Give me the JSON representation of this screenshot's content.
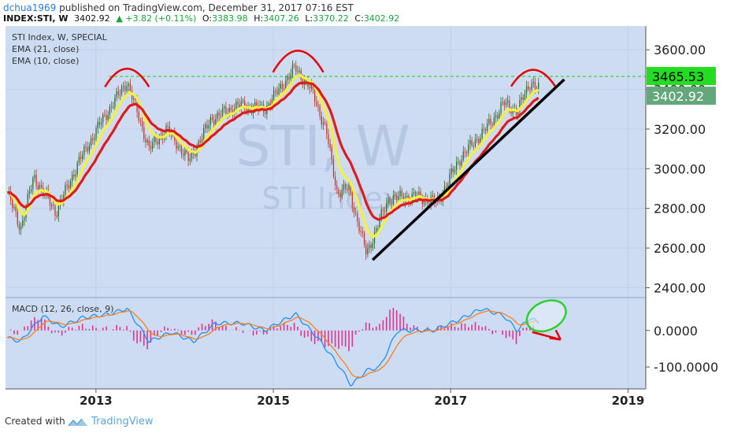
{
  "header": {
    "user": "dchua1969",
    "published": " published on TradingView.com, December 31, 2017 07:16 EST",
    "symbol": "INDEX:STI, W",
    "price": "3402.92",
    "change": "▲ +3.82 (+0.11%)",
    "o_label": "O:",
    "o_value": "3383.98",
    "h_label": "H:",
    "h_value": "3407.26",
    "l_label": "L:",
    "l_value": "3370.22",
    "c_label": "C:",
    "c_value": "3402.92"
  },
  "legend": {
    "line1": "STI Index, W, SPECIAL",
    "line2": "EMA (21, close)",
    "line3": "EMA (10, close)",
    "macd": "MACD (12, 26, close, 9)"
  },
  "watermark": {
    "big": "STI, W",
    "small": "STI Index"
  },
  "footer": {
    "created": "Created with",
    "brand": "TradingView"
  },
  "colors": {
    "background": "#cddcf2",
    "up": "#2e6e2e",
    "down": "#c0392b",
    "ema21": "#e11b1b",
    "ema10": "#f5f13a",
    "macd_line": "#1e90ff",
    "signal_line": "#ff7f1a",
    "histogram": "#e0348f",
    "resistance": "#2ad12a",
    "trendline": "#000000",
    "annotation": "#e60000"
  },
  "chart_data": {
    "type": "candlestick",
    "x_ticks": [
      "2013",
      "2015",
      "2017",
      "2019"
    ],
    "y_ticks": [
      "3600.00",
      "3400.00",
      "3200.00",
      "3000.00",
      "2800.00",
      "2600.00",
      "2400.00"
    ],
    "ylim": [
      2350,
      3720
    ],
    "price_labels": [
      {
        "value": 3465.53,
        "text": "3465.53"
      },
      {
        "value": 3402.92,
        "text": "3402.92"
      }
    ],
    "resistance_level": 3465.53,
    "series": [
      {
        "name": "EMA (21, close)"
      },
      {
        "name": "EMA (10, close)"
      }
    ],
    "key_points": [
      {
        "x": 2012.0,
        "y": 2880
      },
      {
        "x": 2012.15,
        "y": 2700
      },
      {
        "x": 2012.3,
        "y": 2960
      },
      {
        "x": 2012.55,
        "y": 2780
      },
      {
        "x": 2012.8,
        "y": 3030
      },
      {
        "x": 2013.05,
        "y": 3230
      },
      {
        "x": 2013.35,
        "y": 3440
      },
      {
        "x": 2013.6,
        "y": 3100
      },
      {
        "x": 2013.8,
        "y": 3200
      },
      {
        "x": 2014.05,
        "y": 3040
      },
      {
        "x": 2014.3,
        "y": 3250
      },
      {
        "x": 2014.6,
        "y": 3320
      },
      {
        "x": 2014.9,
        "y": 3300
      },
      {
        "x": 2015.25,
        "y": 3510
      },
      {
        "x": 2015.45,
        "y": 3380
      },
      {
        "x": 2015.6,
        "y": 3180
      },
      {
        "x": 2015.72,
        "y": 2880
      },
      {
        "x": 2015.85,
        "y": 2900
      },
      {
        "x": 2016.05,
        "y": 2570
      },
      {
        "x": 2016.3,
        "y": 2850
      },
      {
        "x": 2016.6,
        "y": 2860
      },
      {
        "x": 2016.85,
        "y": 2830
      },
      {
        "x": 2017.1,
        "y": 3050
      },
      {
        "x": 2017.45,
        "y": 3230
      },
      {
        "x": 2017.6,
        "y": 3330
      },
      {
        "x": 2017.75,
        "y": 3290
      },
      {
        "x": 2017.9,
        "y": 3440
      },
      {
        "x": 2017.99,
        "y": 3402.92
      }
    ],
    "macd": {
      "y_ticks": [
        "0.0000",
        "-100.0000"
      ],
      "ylim": [
        -160,
        90
      ],
      "key_points": [
        {
          "x": 2012.0,
          "y": -20
        },
        {
          "x": 2012.15,
          "y": -30
        },
        {
          "x": 2012.4,
          "y": 40
        },
        {
          "x": 2012.6,
          "y": 10
        },
        {
          "x": 2012.85,
          "y": 35
        },
        {
          "x": 2013.15,
          "y": 45
        },
        {
          "x": 2013.35,
          "y": 60
        },
        {
          "x": 2013.6,
          "y": -30
        },
        {
          "x": 2013.85,
          "y": -5
        },
        {
          "x": 2014.1,
          "y": -30
        },
        {
          "x": 2014.35,
          "y": 20
        },
        {
          "x": 2014.65,
          "y": 20
        },
        {
          "x": 2014.9,
          "y": 0
        },
        {
          "x": 2015.25,
          "y": 45
        },
        {
          "x": 2015.5,
          "y": -20
        },
        {
          "x": 2015.75,
          "y": -100
        },
        {
          "x": 2015.88,
          "y": -150
        },
        {
          "x": 2016.05,
          "y": -110
        },
        {
          "x": 2016.2,
          "y": -100
        },
        {
          "x": 2016.4,
          "y": 0
        },
        {
          "x": 2016.8,
          "y": 0
        },
        {
          "x": 2017.1,
          "y": 30
        },
        {
          "x": 2017.35,
          "y": 60
        },
        {
          "x": 2017.6,
          "y": 40
        },
        {
          "x": 2017.75,
          "y": 0
        },
        {
          "x": 2017.9,
          "y": 35
        },
        {
          "x": 2017.99,
          "y": 20
        }
      ]
    }
  }
}
